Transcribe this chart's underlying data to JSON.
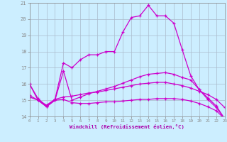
{
  "xlabel": "Windchill (Refroidissement éolien,°C)",
  "background_color": "#cceeff",
  "grid_color": "#aabbcc",
  "line_color": "#cc00cc",
  "xlim": [
    0,
    23
  ],
  "ylim": [
    14,
    21
  ],
  "xticks": [
    0,
    1,
    2,
    3,
    4,
    5,
    6,
    7,
    8,
    9,
    10,
    11,
    12,
    13,
    14,
    15,
    16,
    17,
    18,
    19,
    20,
    21,
    22,
    23
  ],
  "yticks": [
    14,
    15,
    16,
    17,
    18,
    19,
    20,
    21
  ],
  "line1_x": [
    0,
    1,
    2,
    3,
    4,
    5,
    6,
    7,
    8,
    9,
    10,
    11,
    12,
    13,
    14,
    15,
    16,
    17,
    18,
    19,
    20,
    21,
    22,
    23
  ],
  "line1_y": [
    16.0,
    15.0,
    14.6,
    15.0,
    16.8,
    15.0,
    15.2,
    15.4,
    15.55,
    15.7,
    15.85,
    16.05,
    16.25,
    16.45,
    16.6,
    16.65,
    16.7,
    16.6,
    16.4,
    16.25,
    15.65,
    15.05,
    14.55,
    13.85
  ],
  "line2_x": [
    0,
    1,
    2,
    3,
    4,
    5,
    6,
    7,
    8,
    9,
    10,
    11,
    12,
    13,
    14,
    15,
    16,
    17,
    18,
    19,
    20,
    21,
    22,
    23
  ],
  "line2_y": [
    15.2,
    15.0,
    14.7,
    15.05,
    15.2,
    15.25,
    15.35,
    15.45,
    15.5,
    15.6,
    15.7,
    15.8,
    15.9,
    16.0,
    16.05,
    16.1,
    16.1,
    16.0,
    15.9,
    15.75,
    15.55,
    15.35,
    15.05,
    14.55
  ],
  "line3_x": [
    0,
    1,
    2,
    3,
    4,
    5,
    6,
    7,
    8,
    9,
    10,
    11,
    12,
    13,
    14,
    15,
    16,
    17,
    18,
    19,
    20,
    21,
    22,
    23
  ],
  "line3_y": [
    15.3,
    15.0,
    14.6,
    15.0,
    15.05,
    14.85,
    14.8,
    14.8,
    14.85,
    14.9,
    14.9,
    14.95,
    15.0,
    15.05,
    15.05,
    15.1,
    15.1,
    15.1,
    15.05,
    14.95,
    14.8,
    14.6,
    14.35,
    13.85
  ],
  "line4_x": [
    0,
    1,
    2,
    3,
    4,
    5,
    6,
    7,
    8,
    9,
    10,
    11,
    12,
    13,
    14,
    15,
    16,
    17,
    18,
    19,
    20,
    21,
    22,
    23
  ],
  "line4_y": [
    16.0,
    15.1,
    14.65,
    15.05,
    17.3,
    17.0,
    17.5,
    17.8,
    17.8,
    18.0,
    18.0,
    19.2,
    20.1,
    20.2,
    20.85,
    20.2,
    20.2,
    19.75,
    18.1,
    16.5,
    15.65,
    15.15,
    14.65,
    13.85
  ]
}
